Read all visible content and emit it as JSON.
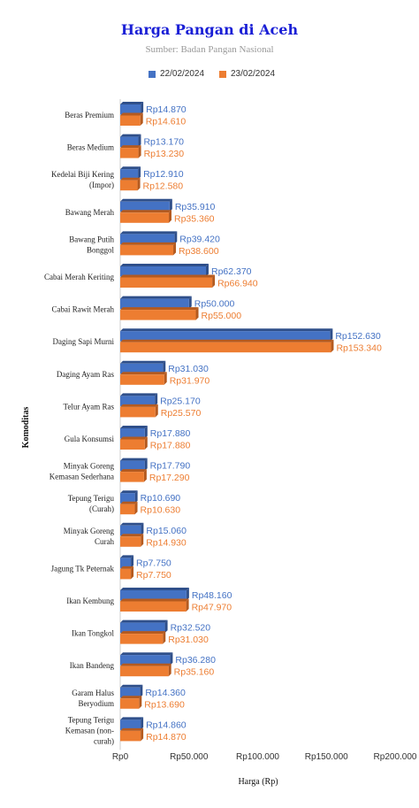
{
  "title": "Harga Pangan di Aceh",
  "subtitle": "Sumber: Badan Pangan Nasional",
  "colors": {
    "series1": "#4472c4",
    "series2": "#ed7d31",
    "title": "#1a1fd6"
  },
  "chart_data": {
    "type": "bar",
    "orientation": "horizontal",
    "title": "Harga Pangan di Aceh",
    "subtitle": "Sumber: Badan Pangan Nasional",
    "xlabel": "Harga (Rp)",
    "ylabel": "Komoditas",
    "xlim": [
      0,
      200000
    ],
    "xticks": [
      "Rp0",
      "Rp50.000",
      "Rp100.000",
      "Rp150.000",
      "Rp200.000"
    ],
    "legend_position": "top",
    "grid": false,
    "categories": [
      [
        "Beras Premium"
      ],
      [
        "Beras Medium"
      ],
      [
        "Kedelai Biji Kering",
        "(Impor)"
      ],
      [
        "Bawang Merah"
      ],
      [
        "Bawang Putih",
        "Bonggol"
      ],
      [
        "Cabai Merah Keriting"
      ],
      [
        "Cabai Rawit Merah"
      ],
      [
        "Daging Sapi Murni"
      ],
      [
        "Daging Ayam Ras"
      ],
      [
        "Telur Ayam Ras"
      ],
      [
        "Gula Konsumsi"
      ],
      [
        "Minyak Goreng",
        "Kemasan Sederhana"
      ],
      [
        "Tepung Terigu",
        "(Curah)"
      ],
      [
        "Minyak Goreng",
        "Curah"
      ],
      [
        "Jagung Tk Peternak"
      ],
      [
        "Ikan Kembung"
      ],
      [
        "Ikan Tongkol"
      ],
      [
        "Ikan Bandeng"
      ],
      [
        "Garam Halus",
        "Beryodium"
      ],
      [
        "Tepung Terigu",
        "Kemasan (non-",
        "curah)"
      ]
    ],
    "series": [
      {
        "name": "22/02/2024",
        "values": [
          14870,
          13170,
          12910,
          35910,
          39420,
          62370,
          50000,
          152630,
          31030,
          25170,
          17880,
          17790,
          10690,
          15060,
          7750,
          48160,
          32520,
          36280,
          14360,
          14860
        ],
        "labels": [
          "Rp14.870",
          "Rp13.170",
          "Rp12.910",
          "Rp35.910",
          "Rp39.420",
          "Rp62.370",
          "Rp50.000",
          "Rp152.630",
          "Rp31.030",
          "Rp25.170",
          "Rp17.880",
          "Rp17.790",
          "Rp10.690",
          "Rp15.060",
          "Rp7.750",
          "Rp48.160",
          "Rp32.520",
          "Rp36.280",
          "Rp14.360",
          "Rp14.860"
        ]
      },
      {
        "name": "23/02/2024",
        "values": [
          14610,
          13230,
          12580,
          35360,
          38600,
          66940,
          55000,
          153340,
          31970,
          25570,
          17880,
          17290,
          10630,
          14930,
          7750,
          47970,
          31030,
          35160,
          13690,
          14870
        ],
        "labels": [
          "Rp14.610",
          "Rp13.230",
          "Rp12.580",
          "Rp35.360",
          "Rp38.600",
          "Rp66.940",
          "Rp55.000",
          "Rp153.340",
          "Rp31.970",
          "Rp25.570",
          "Rp17.880",
          "Rp17.290",
          "Rp10.630",
          "Rp14.930",
          "Rp7.750",
          "Rp47.970",
          "Rp31.030",
          "Rp35.160",
          "Rp13.690",
          "Rp14.870"
        ]
      }
    ]
  }
}
